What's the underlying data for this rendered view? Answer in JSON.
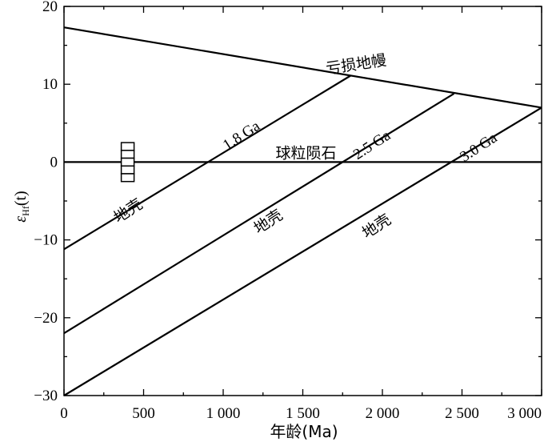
{
  "chart_data": {
    "type": "line",
    "xlabel": "年龄(Ma)",
    "ylabel": {
      "main": "ε",
      "sub": "Hf",
      "paren": "(t)"
    },
    "xlim": [
      0,
      3000
    ],
    "ylim": [
      -30,
      20
    ],
    "xticks": [
      0,
      500,
      1000,
      1500,
      2000,
      2500,
      3000
    ],
    "xtick_labels": [
      "0",
      "500",
      "1 000",
      "1 500",
      "2 000",
      "2 500",
      "3 000"
    ],
    "yticks": [
      -30,
      -20,
      -10,
      0,
      10,
      20
    ],
    "ytick_labels": [
      "−30",
      "−20",
      "−10",
      "0",
      "10",
      "20"
    ],
    "grid": false,
    "series": [
      {
        "name": "亏损地幔",
        "x": [
          0,
          3000
        ],
        "y": [
          17.3,
          7.0
        ]
      },
      {
        "name": "球粒陨石",
        "x": [
          0,
          3000
        ],
        "y": [
          0,
          0
        ]
      },
      {
        "name": "1.8 Ga",
        "x": [
          0,
          1800
        ],
        "y": [
          -11.2,
          11.1
        ]
      },
      {
        "name": "2.5 Ga",
        "x": [
          0,
          2450
        ],
        "y": [
          -22.0,
          8.8
        ]
      },
      {
        "name": "3.0 Ga",
        "x": [
          0,
          3000
        ],
        "y": [
          -30.0,
          7.0
        ]
      }
    ],
    "annotations": [
      {
        "text": "亏损地幔",
        "x": 1840,
        "y": 11.9,
        "angle": -8.5
      },
      {
        "text": "球粒陨石",
        "x": 1520,
        "y": 0.5,
        "angle": 0
      },
      {
        "text": "1.8 Ga",
        "x": 1130,
        "y": 2.9,
        "angle": -33
      },
      {
        "text": "2.5 Ga",
        "x": 1950,
        "y": 1.7,
        "angle": -33
      },
      {
        "text": "3.0 Ga",
        "x": 2620,
        "y": 1.4,
        "angle": -33
      },
      {
        "text": "地壳",
        "x": 420,
        "y": -6.8,
        "angle": -33
      },
      {
        "text": "地壳",
        "x": 1300,
        "y": -8.2,
        "angle": -33
      },
      {
        "text": "地壳",
        "x": 1980,
        "y": -8.8,
        "angle": -33
      }
    ],
    "data_box": {
      "x": 400,
      "y_min": -2.5,
      "y_max": 2.5,
      "divisions": 5
    }
  }
}
